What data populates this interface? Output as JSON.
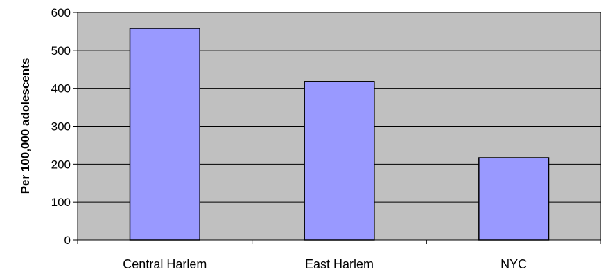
{
  "chart_data": {
    "type": "bar",
    "title": "",
    "xlabel": "",
    "ylabel": "Per 100,000 adolescents",
    "categories": [
      "Central Harlem",
      "East Harlem",
      "NYC"
    ],
    "values": [
      558,
      418,
      217
    ],
    "ylim": [
      0,
      600
    ],
    "yticks": [
      "0",
      "100",
      "200",
      "300",
      "400",
      "500",
      "600"
    ],
    "grid": true,
    "legend": "none",
    "colors": {
      "plot_background": "#c0c0c0",
      "bar_fill": "#9999ff",
      "bar_stroke": "#000000",
      "gridline": "#000000"
    }
  }
}
